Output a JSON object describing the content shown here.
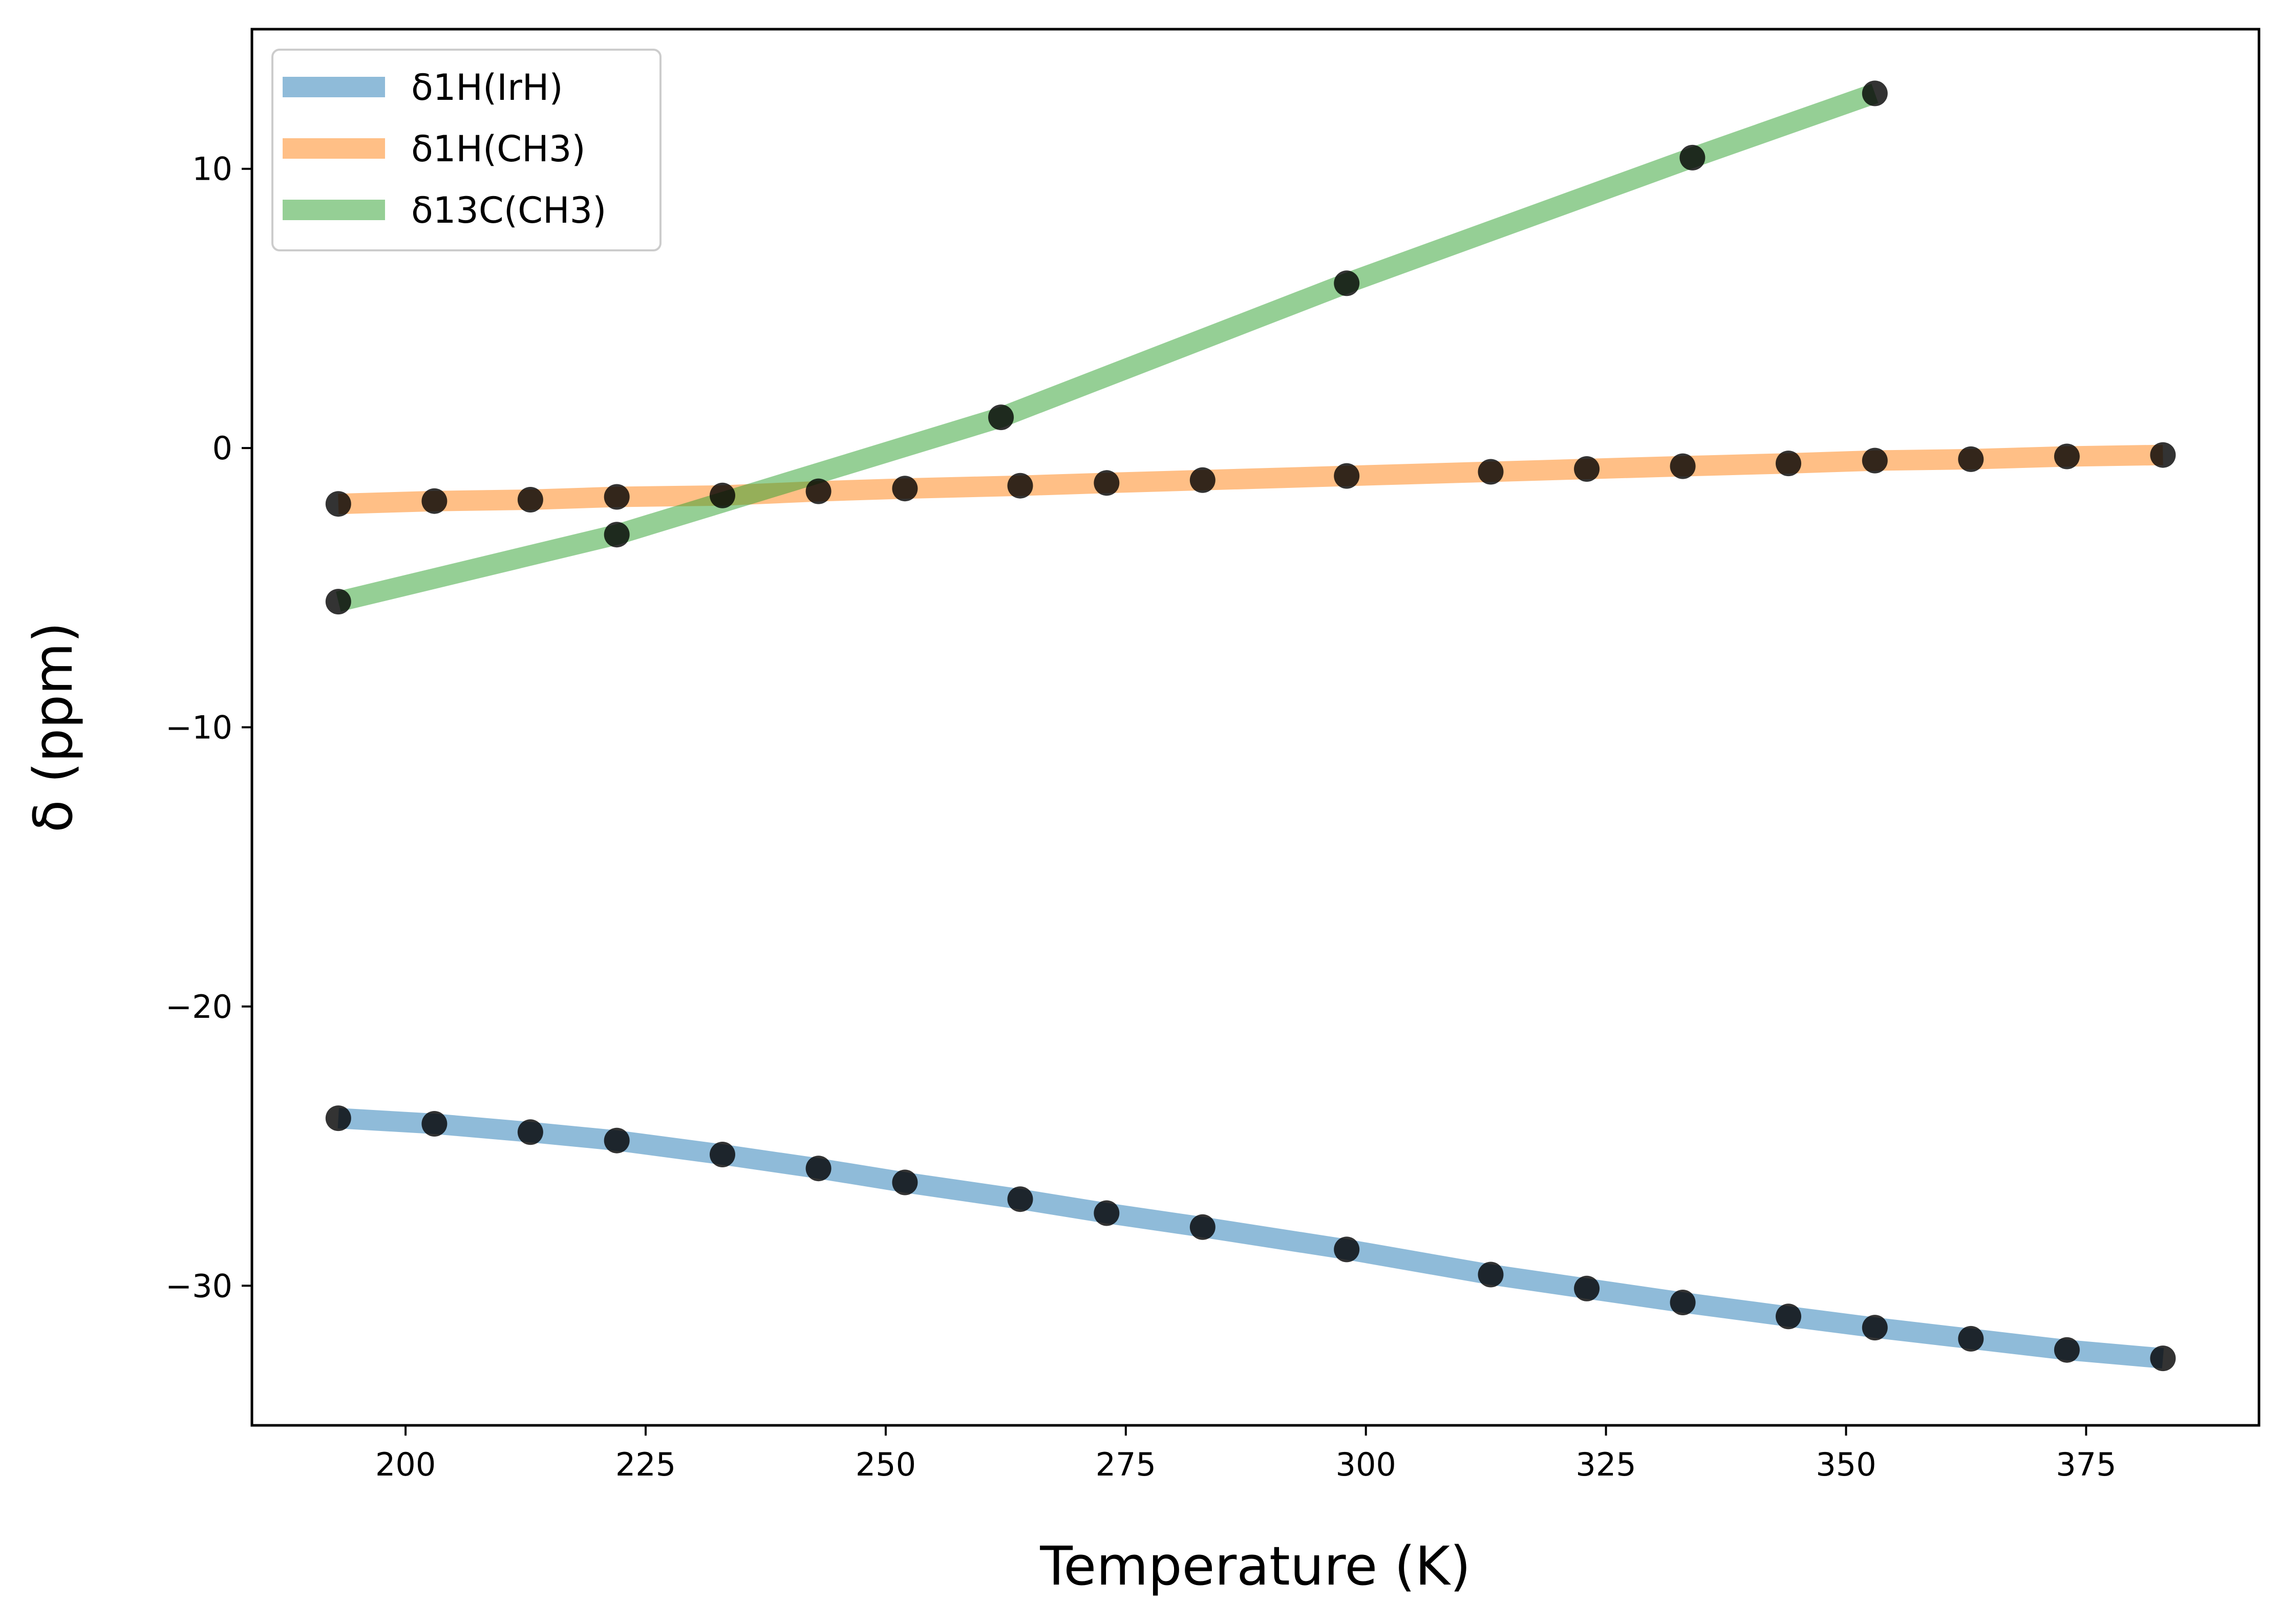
{
  "chart_data": {
    "type": "line",
    "xlabel": "Temperature (K)",
    "ylabel": "δ (ppm)",
    "xlim": [
      184,
      393
    ],
    "ylim": [
      -35,
      15
    ],
    "xticks": [
      200,
      225,
      250,
      275,
      300,
      325,
      350,
      375
    ],
    "yticks": [
      -30,
      -20,
      -10,
      0,
      10
    ],
    "xtick_labels": [
      "200",
      "225",
      "250",
      "275",
      "300",
      "325",
      "350",
      "375"
    ],
    "ytick_labels": [
      "−30",
      "−20",
      "−10",
      "0",
      "10"
    ],
    "grid": false,
    "legend_position": "top-left",
    "marker_color": "#000000",
    "series": [
      {
        "name": "δ1H(IrH)",
        "color": "#1f77b4",
        "x": [
          193,
          203,
          213,
          222,
          233,
          243,
          252,
          264,
          273,
          283,
          298,
          313,
          323,
          333,
          344,
          353,
          363,
          373,
          383
        ],
        "y": [
          -24.0,
          -24.2,
          -24.5,
          -24.8,
          -25.3,
          -25.8,
          -26.3,
          -26.9,
          -27.4,
          -27.9,
          -28.7,
          -29.6,
          -30.1,
          -30.6,
          -31.1,
          -31.5,
          -31.9,
          -32.3,
          -32.6
        ]
      },
      {
        "name": "δ1H(CH3)",
        "color": "#ff7f0e",
        "x": [
          193,
          203,
          213,
          222,
          233,
          243,
          252,
          264,
          273,
          283,
          298,
          313,
          323,
          333,
          344,
          353,
          363,
          373,
          383
        ],
        "y": [
          -2.0,
          -1.9,
          -1.85,
          -1.75,
          -1.7,
          -1.55,
          -1.45,
          -1.35,
          -1.25,
          -1.15,
          -1.0,
          -0.85,
          -0.75,
          -0.65,
          -0.55,
          -0.45,
          -0.4,
          -0.3,
          -0.25
        ]
      },
      {
        "name": "δ13C(CH3)",
        "color": "#2ca02c",
        "x": [
          193,
          222,
          262,
          298,
          334,
          353
        ],
        "y": [
          -5.5,
          -3.1,
          1.1,
          5.9,
          10.4,
          12.7
        ]
      }
    ]
  }
}
